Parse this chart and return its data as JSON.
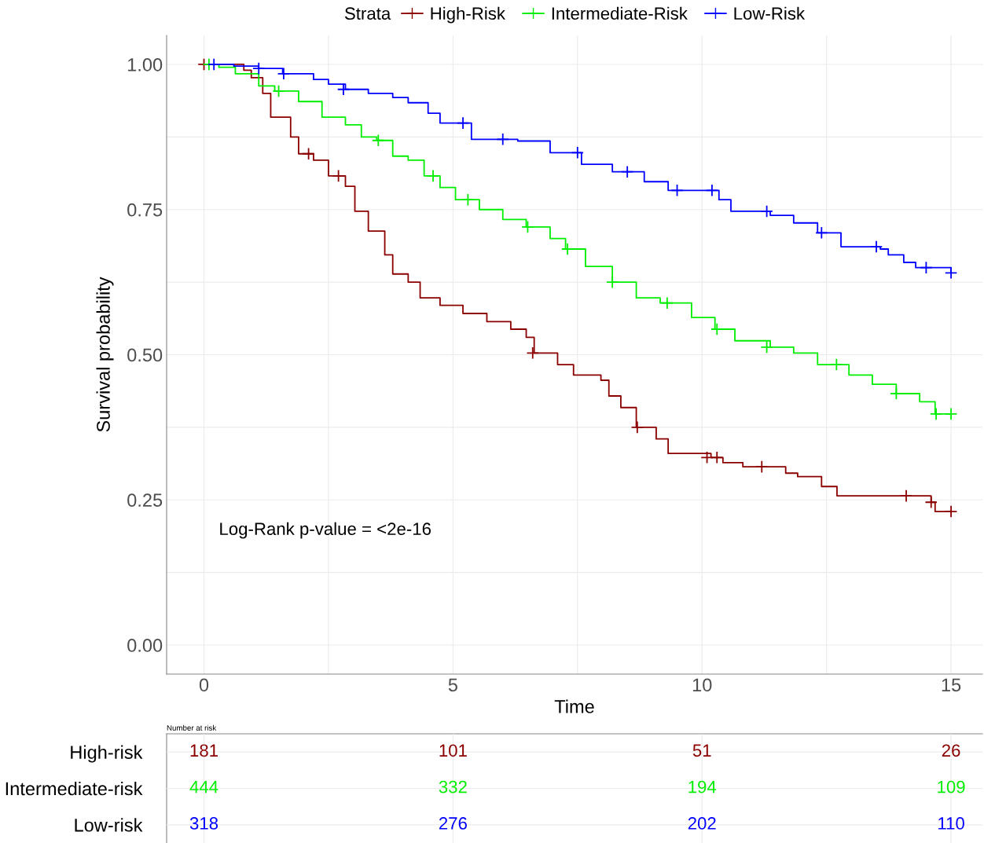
{
  "chart_data": [
    {
      "type": "step",
      "xlabel": "Time",
      "ylabel": "Survival probability",
      "legend_title": "Strata",
      "legend": "top",
      "grid": true,
      "line_style": "solid",
      "xlim": [
        -0.75,
        15.63
      ],
      "ylim": [
        -0.05,
        1.05
      ],
      "xticks": [
        0,
        {
          "value": 2.5,
          "label": null
        },
        5,
        {
          "value": 7.5,
          "label": null
        },
        10,
        {
          "value": 12.5,
          "label": null
        },
        15
      ],
      "yticks": [
        {
          "value": 0,
          "label": "0.00"
        },
        {
          "value": 0.125,
          "label": null
        },
        {
          "value": 0.25,
          "label": "0.25"
        },
        {
          "value": 0.375,
          "label": null
        },
        {
          "value": 0.5,
          "label": "0.50"
        },
        {
          "value": 0.625,
          "label": null
        },
        {
          "value": 0.75,
          "label": "0.75"
        },
        {
          "value": 0.875,
          "label": null
        },
        {
          "value": 1,
          "label": "1.00"
        }
      ],
      "annotations": [
        "Log-Rank p-value = <2e-16"
      ],
      "series": [
        {
          "name": "High-Risk",
          "type": "step",
          "color": "#8b0000",
          "x": [
            0,
            0.8,
            0.95,
            1.18,
            1.34,
            1.74,
            1.9,
            2.2,
            2.5,
            2.84,
            3.03,
            3.3,
            3.63,
            3.79,
            4.1,
            4.34,
            4.74,
            5.2,
            5.68,
            6.16,
            6.47,
            6.63,
            7.1,
            7.42,
            7.97,
            8.13,
            8.37,
            8.68,
            9.08,
            9.32,
            10.18,
            10.42,
            10.82,
            11.68,
            11.92,
            12.4,
            12.71,
            14.6,
            14.68,
            15
          ],
          "values": [
            1,
            0.99,
            0.977,
            0.95,
            0.909,
            0.875,
            0.846,
            0.835,
            0.808,
            0.79,
            0.747,
            0.713,
            0.672,
            0.639,
            0.625,
            0.598,
            0.585,
            0.571,
            0.557,
            0.544,
            0.53,
            0.503,
            0.483,
            0.465,
            0.456,
            0.429,
            0.409,
            0.375,
            0.355,
            0.33,
            0.323,
            0.314,
            0.307,
            0.296,
            0.29,
            0.273,
            0.257,
            0.246,
            0.23,
            0.23
          ]
        },
        {
          "name": "Intermediate-Risk",
          "type": "step",
          "color": "#00ee00",
          "x": [
            0,
            0.3,
            0.63,
            1.1,
            1.42,
            1.9,
            2.37,
            2.84,
            3.16,
            3.47,
            3.79,
            4.1,
            4.42,
            4.74,
            5.05,
            5.53,
            6.0,
            6.47,
            6.95,
            7.26,
            7.66,
            8.2,
            8.68,
            9.16,
            9.79,
            10.26,
            10.66,
            11.37,
            11.84,
            12.32,
            12.95,
            13.42,
            13.9,
            14.37,
            14.68,
            15
          ],
          "values": [
            1,
            0.995,
            0.984,
            0.963,
            0.954,
            0.936,
            0.909,
            0.896,
            0.875,
            0.869,
            0.842,
            0.835,
            0.808,
            0.788,
            0.767,
            0.75,
            0.733,
            0.72,
            0.7,
            0.682,
            0.652,
            0.625,
            0.598,
            0.589,
            0.564,
            0.544,
            0.524,
            0.513,
            0.503,
            0.483,
            0.465,
            0.449,
            0.433,
            0.419,
            0.398,
            0.398
          ]
        },
        {
          "name": "Low-Risk",
          "type": "step",
          "color": "#0000ff",
          "x": [
            0,
            0.6,
            1.1,
            1.58,
            2.2,
            2.5,
            2.84,
            3.3,
            3.79,
            4.1,
            4.5,
            4.74,
            5.37,
            6.3,
            6.95,
            7.58,
            8.2,
            8.84,
            9.32,
            10.1,
            10.34,
            10.58,
            11.37,
            11.84,
            12.32,
            12.79,
            13.58,
            13.74,
            14.05,
            14.29,
            15
          ],
          "values": [
            1,
            0.997,
            0.993,
            0.984,
            0.974,
            0.966,
            0.957,
            0.95,
            0.943,
            0.934,
            0.916,
            0.899,
            0.871,
            0.868,
            0.848,
            0.828,
            0.815,
            0.798,
            0.783,
            0.783,
            0.767,
            0.747,
            0.74,
            0.727,
            0.71,
            0.686,
            0.682,
            0.672,
            0.659,
            0.65,
            0.641
          ]
        },
        {
          "type": "scatter",
          "color": "#8b0000",
          "marker": "cross",
          "x": [
            0,
            2.1,
            2.7,
            6.6,
            8.7,
            10.1,
            10.3,
            11.2,
            14.1,
            14.6,
            15
          ],
          "values": [
            1,
            0.846,
            0.808,
            0.503,
            0.375,
            0.323,
            0.323,
            0.307,
            0.257,
            0.246,
            0.23
          ]
        },
        {
          "type": "scatter",
          "color": "#00ee00",
          "marker": "cross",
          "x": [
            0.1,
            1.5,
            3.5,
            4.6,
            5.3,
            6.5,
            7.3,
            8.2,
            9.3,
            10.3,
            11.3,
            12.7,
            13.9,
            14.7,
            15
          ],
          "values": [
            1,
            0.954,
            0.869,
            0.808,
            0.767,
            0.72,
            0.682,
            0.625,
            0.589,
            0.544,
            0.513,
            0.483,
            0.433,
            0.398,
            0.398
          ]
        },
        {
          "type": "scatter",
          "color": "#0000ff",
          "marker": "cross",
          "x": [
            0.2,
            1.1,
            1.6,
            2.8,
            5.2,
            6.0,
            7.5,
            8.5,
            9.5,
            10.2,
            11.3,
            12.4,
            13.5,
            14.5,
            15
          ],
          "values": [
            1,
            0.993,
            0.984,
            0.957,
            0.899,
            0.871,
            0.848,
            0.815,
            0.783,
            0.783,
            0.747,
            0.71,
            0.686,
            0.65,
            0.641
          ]
        }
      ]
    },
    {
      "type": "heatmap",
      "title": "Number at risk",
      "grid": true,
      "data_labels": true,
      "categories": [
        null,
        null,
        null,
        null
      ],
      "y_categories": [
        "High-risk",
        "Intermediate-risk",
        "Low-risk"
      ],
      "colors": [
        "#8b0000",
        "#00ee00",
        "#0000ff"
      ],
      "cells": [
        [
          181,
          101,
          51,
          26
        ],
        [
          444,
          332,
          194,
          109
        ],
        [
          318,
          276,
          202,
          110
        ]
      ]
    }
  ]
}
